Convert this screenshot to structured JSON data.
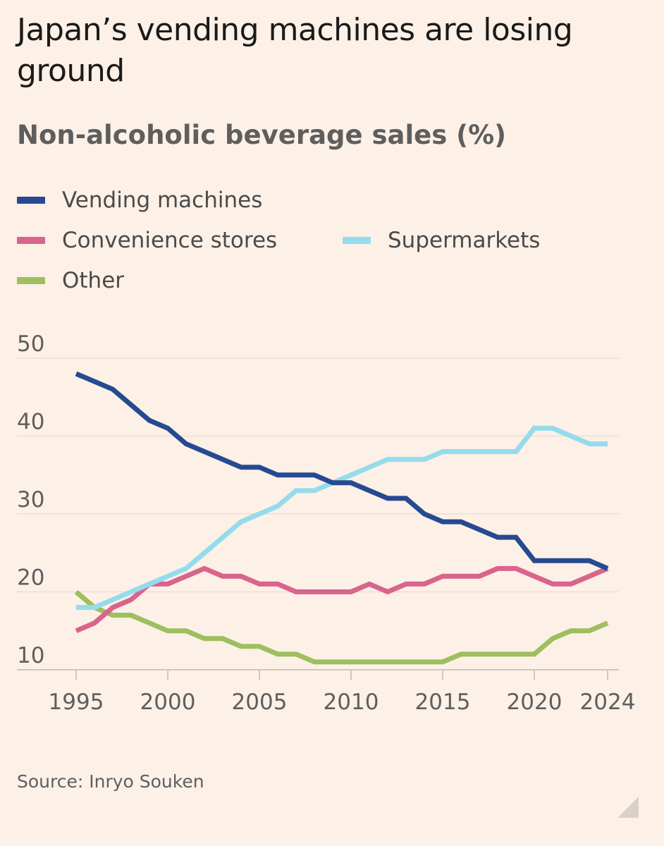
{
  "title": "Japan’s vending machines are losing ground",
  "subtitle": "Non-alcoholic beverage sales (%)",
  "source": "Source: Inryo Souken",
  "legend": [
    {
      "name": "Vending machines",
      "color": "#264a91"
    },
    {
      "name": "Convenience stores",
      "color": "#d9648c"
    },
    {
      "name": "Supermarkets",
      "color": "#94dcec"
    },
    {
      "name": "Other",
      "color": "#9dbf5f"
    }
  ],
  "chart_data": {
    "type": "line",
    "title": "Japan’s vending machines are losing ground",
    "subtitle": "Non-alcoholic beverage sales (%)",
    "xlabel": "",
    "ylabel": "",
    "x": [
      1995,
      1996,
      1997,
      1998,
      1999,
      2000,
      2001,
      2002,
      2003,
      2004,
      2005,
      2006,
      2007,
      2008,
      2009,
      2010,
      2011,
      2012,
      2013,
      2014,
      2015,
      2016,
      2017,
      2018,
      2019,
      2020,
      2021,
      2022,
      2023,
      2024
    ],
    "x_ticks": [
      "1995",
      "2000",
      "2005",
      "2010",
      "2015",
      "2020",
      "2024"
    ],
    "y_ticks": [
      "50",
      "40",
      "30",
      "20",
      "10"
    ],
    "ylim": [
      10,
      50
    ],
    "xlim": [
      1995,
      2024
    ],
    "grid": true,
    "legend_position": "top-left",
    "series": [
      {
        "name": "Vending machines",
        "color": "#264a91",
        "values": [
          48,
          47,
          46,
          44,
          42,
          41,
          39,
          38,
          37,
          36,
          36,
          35,
          35,
          35,
          34,
          34,
          33,
          32,
          32,
          30,
          29,
          29,
          28,
          27,
          27,
          24,
          24,
          24,
          24,
          23
        ]
      },
      {
        "name": "Convenience stores",
        "color": "#d9648c",
        "values": [
          15,
          16,
          18,
          19,
          21,
          21,
          22,
          23,
          22,
          22,
          21,
          21,
          20,
          20,
          20,
          20,
          21,
          20,
          21,
          21,
          22,
          22,
          22,
          23,
          23,
          22,
          21,
          21,
          22,
          23
        ]
      },
      {
        "name": "Supermarkets",
        "color": "#94dcec",
        "values": [
          18,
          18,
          19,
          20,
          21,
          22,
          23,
          25,
          27,
          29,
          30,
          31,
          33,
          33,
          34,
          35,
          36,
          37,
          37,
          37,
          38,
          38,
          38,
          38,
          38,
          41,
          41,
          40,
          39,
          39
        ]
      },
      {
        "name": "Other",
        "color": "#9dbf5f",
        "values": [
          20,
          18,
          17,
          17,
          16,
          15,
          15,
          14,
          14,
          13,
          13,
          12,
          12,
          11,
          11,
          11,
          11,
          11,
          11,
          11,
          11,
          12,
          12,
          12,
          12,
          12,
          14,
          15,
          15,
          16
        ]
      }
    ]
  }
}
